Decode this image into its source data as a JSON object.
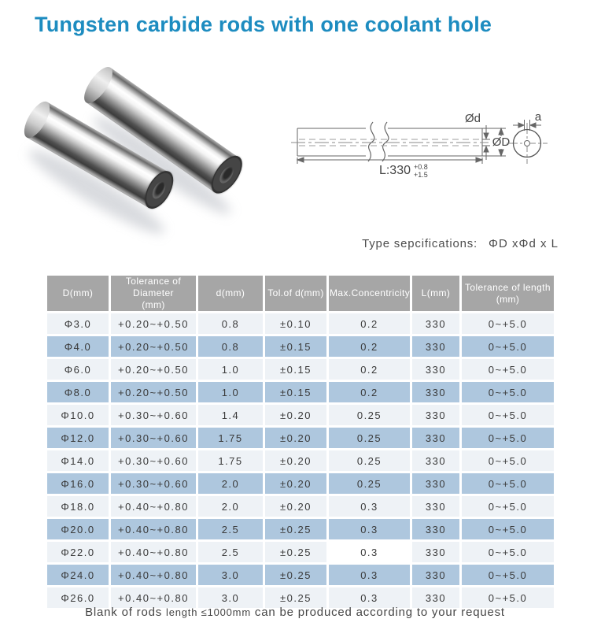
{
  "title": "Tungsten carbide rods with one coolant hole",
  "type_spec": {
    "label": "Type sepcifications:",
    "value": "ΦD xΦd x L"
  },
  "diagram": {
    "label_d_small": "Ød",
    "label_d_big": "ØD",
    "label_length": "L:330",
    "tol_top": "+0.8",
    "tol_bottom": "+1.5",
    "label_hole": "a"
  },
  "table": {
    "headers": [
      "D(mm)",
      "Tolerance of Diameter\n(mm)",
      "d(mm)",
      "Tol.of d(mm)",
      "Max.Concentricity",
      "L(mm)",
      "Tolerance of length\n(mm)"
    ],
    "rows": [
      [
        "Φ3.0",
        "+0.20~+0.50",
        "0.8",
        "±0.10",
        "0.2",
        "330",
        "0~+5.0"
      ],
      [
        "Φ4.0",
        "+0.20~+0.50",
        "0.8",
        "±0.15",
        "0.2",
        "330",
        "0~+5.0"
      ],
      [
        "Φ6.0",
        "+0.20~+0.50",
        "1.0",
        "±0.15",
        "0.2",
        "330",
        "0~+5.0"
      ],
      [
        "Φ8.0",
        "+0.20~+0.50",
        "1.0",
        "±0.15",
        "0.2",
        "330",
        "0~+5.0"
      ],
      [
        "Φ10.0",
        "+0.30~+0.60",
        "1.4",
        "±0.20",
        "0.25",
        "330",
        "0~+5.0"
      ],
      [
        "Φ12.0",
        "+0.30~+0.60",
        "1.75",
        "±0.20",
        "0.25",
        "330",
        "0~+5.0"
      ],
      [
        "Φ14.0",
        "+0.30~+0.60",
        "1.75",
        "±0.20",
        "0.25",
        "330",
        "0~+5.0"
      ],
      [
        "Φ16.0",
        "+0.30~+0.60",
        "2.0",
        "±0.20",
        "0.25",
        "330",
        "0~+5.0"
      ],
      [
        "Φ18.0",
        "+0.40~+0.80",
        "2.0",
        "±0.20",
        "0.3",
        "330",
        "0~+5.0"
      ],
      [
        "Φ20.0",
        "+0.40~+0.80",
        "2.5",
        "±0.25",
        "0.3",
        "330",
        "0~+5.0"
      ],
      [
        "Φ22.0",
        "+0.40~+0.80",
        "2.5",
        "±0.25",
        "0.3",
        "330",
        "0~+5.0"
      ],
      [
        "Φ24.0",
        "+0.40~+0.80",
        "3.0",
        "±0.25",
        "0.3",
        "330",
        "0~+5.0"
      ],
      [
        "Φ26.0",
        "+0.40~+0.80",
        "3.0",
        "±0.25",
        "0.3",
        "330",
        "0~+5.0"
      ]
    ],
    "white_cell": {
      "row": 10,
      "col": 4
    }
  },
  "footer": {
    "part1": "Blank of rods",
    "part2": "length ≤1000mm",
    "part3": "can be produced according to your request"
  },
  "colors": {
    "title": "#1d8cc0",
    "header_bg": "#a6a6a6",
    "row_light": "#eef2f6",
    "row_blue": "#aec7de"
  }
}
